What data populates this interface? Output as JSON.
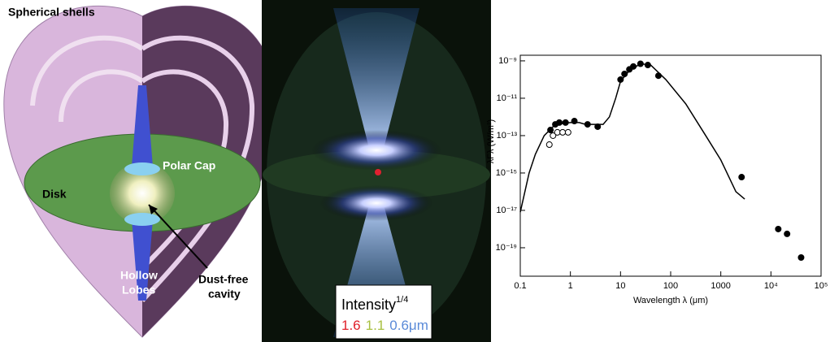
{
  "diagram": {
    "labels": {
      "shells": "Spherical shells",
      "cap": "Polar Cap",
      "disk": "Disk",
      "lobes": [
        "Hollow",
        "Lobes"
      ],
      "cavity": [
        "Dust-free",
        "cavity"
      ]
    }
  },
  "image": {
    "legend": {
      "title": "Intensity",
      "title_sup": "1/4",
      "bands": [
        {
          "label": "1.6",
          "color": "#e0202a"
        },
        {
          "label": "1.1",
          "color": "#a8c040"
        },
        {
          "label": "0.6",
          "color": "#5a8ad8"
        }
      ],
      "unit": "μm"
    }
  },
  "chart_data": {
    "type": "scatter",
    "xlabel": "Wavelength λ (μm)",
    "ylabel": "λFλ (W/m²)",
    "xscale": "log",
    "yscale": "log",
    "xlim": [
      0.1,
      100000
    ],
    "ylim": [
      3e-21,
      2e-09
    ],
    "xticks": [
      0.1,
      1,
      10,
      100,
      1000,
      {
        "value": 10000,
        "label": "10⁴"
      },
      {
        "value": 100000,
        "label": "10⁵"
      }
    ],
    "yticks": [
      {
        "value": 1e-19,
        "label": "10⁻¹⁹"
      },
      {
        "value": 1e-17,
        "label": "10⁻¹⁷"
      },
      {
        "value": 1e-15,
        "label": "10⁻¹⁵"
      },
      {
        "value": 1e-13,
        "label": "10⁻¹³"
      },
      {
        "value": 1e-11,
        "label": "10⁻¹¹"
      },
      {
        "value": 1e-09,
        "label": "10⁻⁹"
      }
    ],
    "series": [
      {
        "style": "line",
        "color": "#000000",
        "x": [
          0.1,
          0.15,
          0.2,
          0.3,
          0.5,
          1,
          1.5,
          2,
          3,
          4.5,
          6,
          8,
          10,
          15,
          25,
          40,
          80,
          200,
          500,
          1000,
          2000,
          3000
        ],
        "values": [
          8e-18,
          1e-15,
          1e-14,
          1e-13,
          4e-13,
          5e-13,
          5e-13,
          4e-13,
          4e-13,
          4e-13,
          1e-12,
          1e-11,
          8e-11,
          3e-10,
          7e-10,
          6e-10,
          1e-10,
          5e-12,
          1e-13,
          5e-15,
          1e-16,
          4e-17
        ]
      },
      {
        "style": "filled",
        "color": "#000000",
        "x": [
          0.4,
          0.5,
          0.6,
          0.8,
          1.2,
          2.2,
          3.5,
          10,
          12,
          15,
          18,
          25,
          35,
          57,
          2600,
          14000,
          21000,
          40000
        ],
        "values": [
          2e-13,
          4e-13,
          5e-13,
          5e-13,
          6e-13,
          4e-13,
          3e-13,
          1e-10,
          2e-10,
          3.5e-10,
          5e-10,
          7e-10,
          6e-10,
          1.6e-10,
          6e-16,
          1e-18,
          5.5e-19,
          3e-20
        ]
      },
      {
        "style": "open",
        "color": "#000000",
        "x": [
          0.38,
          0.45,
          0.55,
          0.7,
          0.9
        ],
        "values": [
          3.3e-14,
          1e-13,
          1.5e-13,
          1.5e-13,
          1.5e-13
        ]
      }
    ]
  }
}
